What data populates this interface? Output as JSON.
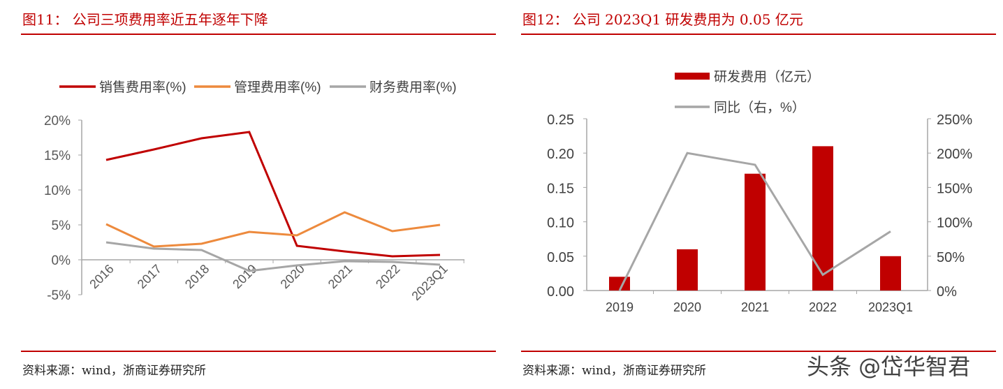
{
  "left_panel": {
    "title": "图11：  公司三项费用率近五年逐年下降",
    "source": "资料来源：wind，浙商证券研究所"
  },
  "right_panel": {
    "title": "图12：  公司 2023Q1 研发费用为 0.05 亿元",
    "source": "资料来源：wind，浙商证券研究所"
  },
  "watermark": "头条 @岱华智君",
  "chart_data": [
    {
      "type": "line",
      "categories": [
        "2016",
        "2017",
        "2018",
        "2019",
        "2020",
        "2021",
        "2022",
        "2023Q1"
      ],
      "ylim": [
        -5,
        20
      ],
      "yticks": [
        "20%",
        "15%",
        "10%",
        "5%",
        "0%",
        "-5%"
      ],
      "ytick_values": [
        20,
        15,
        10,
        5,
        0,
        -5
      ],
      "legend_position": "top",
      "grid": false,
      "series": [
        {
          "name": "销售费用率(%)",
          "color": "#c00000",
          "values": [
            14.3,
            15.8,
            17.4,
            18.3,
            2.0,
            1.2,
            0.5,
            0.7
          ]
        },
        {
          "name": "管理费用率(%)",
          "color": "#ed8a3d",
          "values": [
            5.1,
            1.9,
            2.3,
            4.0,
            3.5,
            6.8,
            4.1,
            5.0
          ]
        },
        {
          "name": "财务费用率(%)",
          "color": "#a6a6a6",
          "values": [
            2.5,
            1.6,
            1.4,
            -1.6,
            -0.8,
            -0.2,
            -0.3,
            -0.7
          ]
        }
      ]
    },
    {
      "type": "bar+line",
      "categories": [
        "2019",
        "2020",
        "2021",
        "2022",
        "2023Q1"
      ],
      "ylim": [
        0,
        0.25
      ],
      "yticks": [
        "0.25",
        "0.20",
        "0.15",
        "0.10",
        "0.05",
        "0.00"
      ],
      "ytick_values": [
        0.25,
        0.2,
        0.15,
        0.1,
        0.05,
        0
      ],
      "y2lim": [
        0,
        250
      ],
      "y2ticks": [
        "250%",
        "200%",
        "150%",
        "100%",
        "50%",
        "0%"
      ],
      "y2tick_values": [
        250,
        200,
        150,
        100,
        50,
        0
      ],
      "legend_position": "top",
      "grid": false,
      "series": [
        {
          "name": "研发费用（亿元）",
          "type": "bar",
          "color": "#c00000",
          "values": [
            0.02,
            0.06,
            0.17,
            0.21,
            0.05
          ]
        },
        {
          "name": "同比（右，%）",
          "type": "line",
          "axis": "right",
          "color": "#a6a6a6",
          "values": [
            0,
            200,
            183,
            23,
            86
          ]
        }
      ]
    }
  ]
}
